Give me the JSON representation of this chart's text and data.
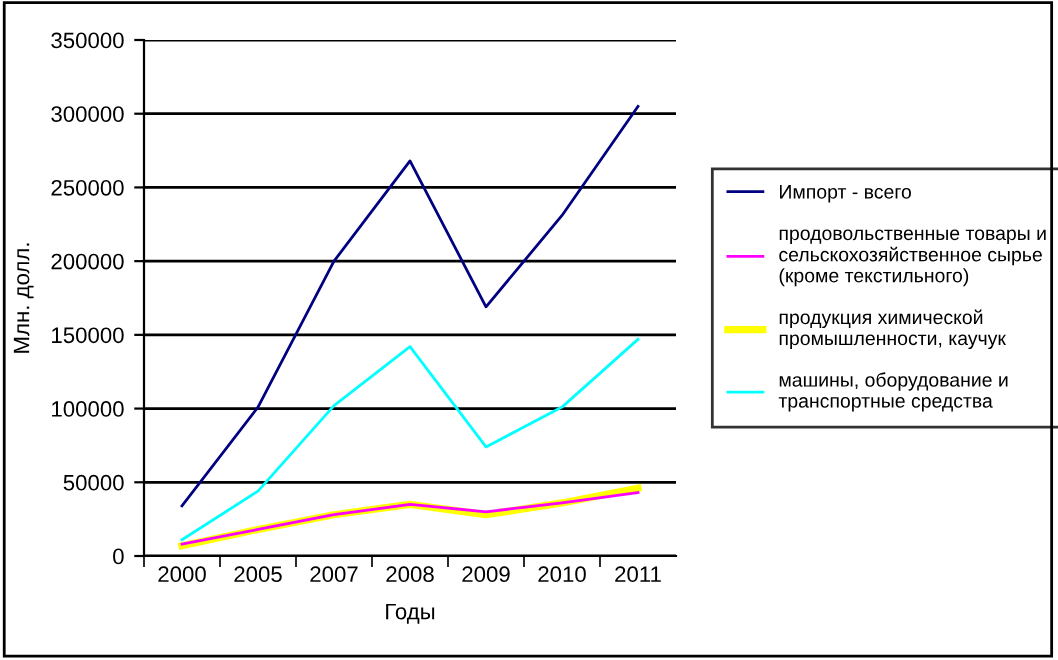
{
  "chart_data": {
    "type": "line",
    "xlabel": "Годы",
    "ylabel": "Млн. долл.",
    "categories": [
      "2000",
      "2005",
      "2007",
      "2008",
      "2009",
      "2010",
      "2011"
    ],
    "series": [
      {
        "name": "Импорт - всего",
        "color": "#000080",
        "values": [
          34000,
          101000,
          200000,
          268000,
          169000,
          231000,
          305000
        ]
      },
      {
        "name": "продовольственные товары и\nсельскохозяйственное сырье\n(кроме текстильного)",
        "color": "#ff00ff",
        "values": [
          8000,
          18000,
          28000,
          35000,
          30000,
          36000,
          43000
        ]
      },
      {
        "name": "продукция химической\nпромышленности, каучук",
        "color": "#ffff00",
        "values": [
          7000,
          18000,
          28000,
          35000,
          28000,
          36000,
          46000
        ]
      },
      {
        "name": "машины, оборудование и\nтранспортные средства",
        "color": "#00ffff",
        "values": [
          11000,
          44000,
          102000,
          142000,
          74000,
          101000,
          147000
        ]
      }
    ],
    "ylim": [
      0,
      350000
    ],
    "yticks": [
      0,
      50000,
      100000,
      150000,
      200000,
      250000,
      300000,
      350000
    ],
    "grid": "y",
    "legend": "right",
    "marker": "none",
    "line_style": "solid"
  }
}
